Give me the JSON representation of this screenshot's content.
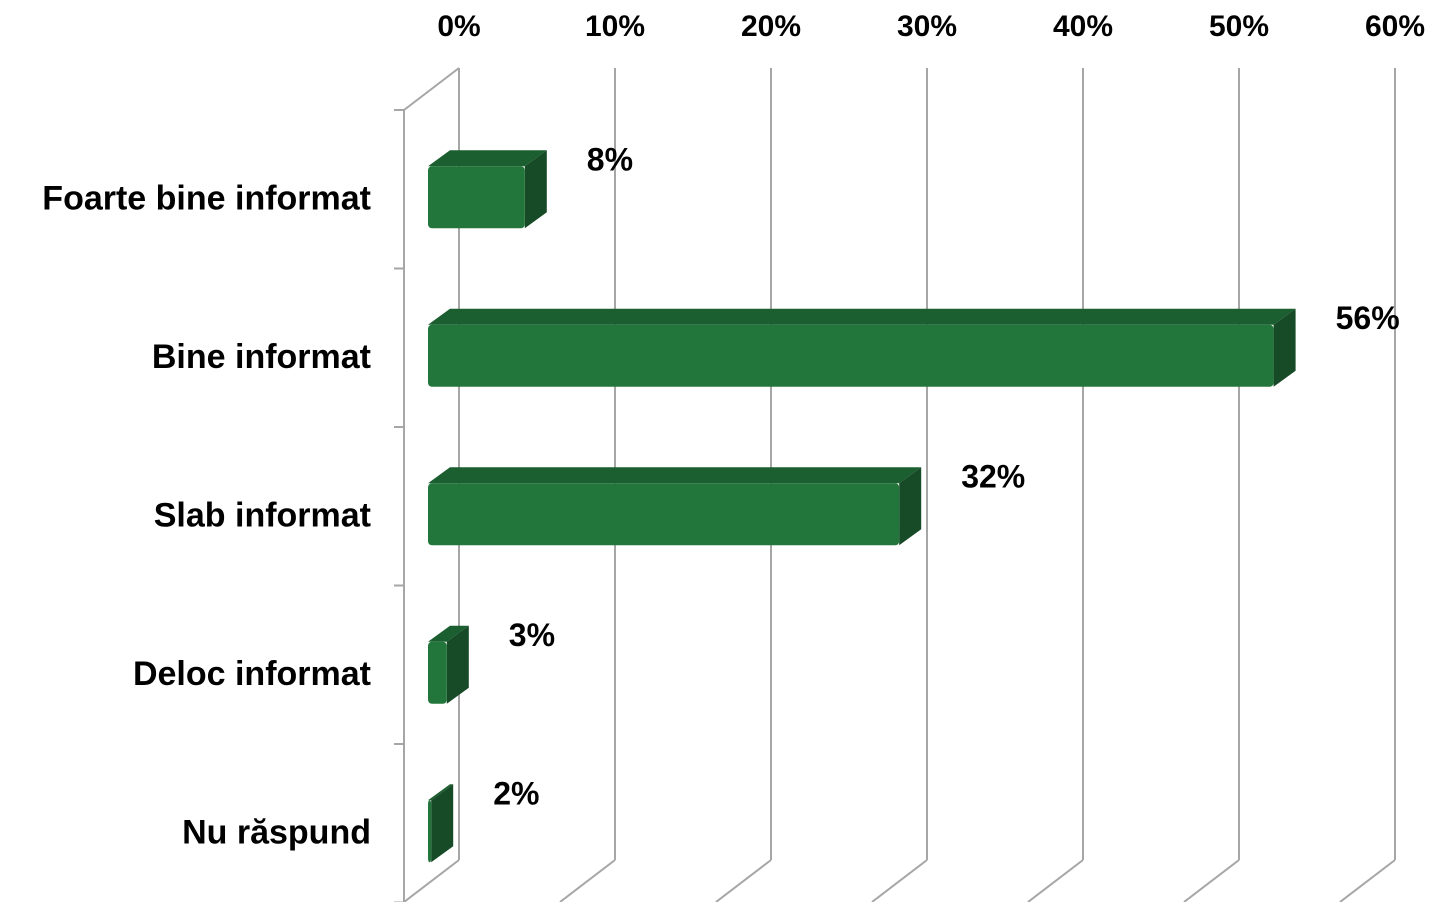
{
  "chart_data": {
    "type": "bar",
    "orientation": "horizontal",
    "three_d": true,
    "categories": [
      "Foarte bine informat",
      "Bine informat",
      "Slab informat",
      "Deloc informat",
      "Nu răspund"
    ],
    "values": [
      8,
      56,
      32,
      3,
      2
    ],
    "value_labels": [
      "8%",
      "56%",
      "32%",
      "3%",
      "2%"
    ],
    "xlim": [
      0,
      60
    ],
    "x_ticks": [
      0,
      10,
      20,
      30,
      40,
      50,
      60
    ],
    "x_tick_labels": [
      "0%",
      "10%",
      "20%",
      "30%",
      "40%",
      "50%",
      "60%"
    ],
    "x_axis_position": "top",
    "grid": true,
    "legend": "none",
    "title": "",
    "xlabel": "",
    "ylabel": ""
  },
  "colors": {
    "bar_front": "#23763b",
    "bar_top": "#1b5e2f",
    "bar_side": "#174a26",
    "grid": "#a6a6a6",
    "text": "#000000"
  }
}
